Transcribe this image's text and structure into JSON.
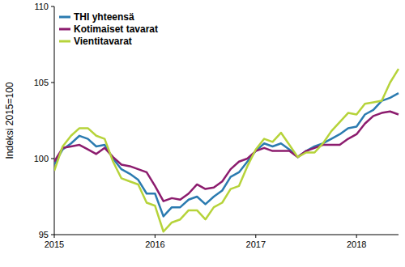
{
  "chart_data": {
    "type": "line",
    "y_label": "Indeksi 2015=100",
    "categories": [
      "2015",
      null,
      null,
      null,
      null,
      null,
      null,
      null,
      null,
      null,
      null,
      null,
      "2016",
      null,
      null,
      null,
      null,
      null,
      null,
      null,
      null,
      null,
      null,
      null,
      "2017",
      null,
      null,
      null,
      null,
      null,
      null,
      null,
      null,
      null,
      null,
      null,
      "2018",
      null,
      null,
      null,
      null,
      null
    ],
    "series": [
      {
        "name": "THI yhteensä",
        "color": "#2b7bb0",
        "values": [
          99.6,
          100.6,
          101.0,
          101.5,
          101.3,
          100.8,
          100.9,
          100.0,
          99.3,
          99.0,
          98.6,
          97.7,
          97.7,
          96.2,
          96.8,
          96.8,
          97.3,
          97.5,
          97.0,
          97.5,
          97.9,
          98.8,
          99.1,
          99.8,
          100.5,
          101.0,
          100.8,
          101.0,
          100.6,
          100.1,
          100.5,
          100.8,
          101.0,
          101.3,
          101.6,
          102.0,
          102.1,
          102.9,
          103.2,
          103.8,
          104.0,
          104.3
        ]
      },
      {
        "name": "Kotimaiset tavarat",
        "color": "#8c1c6e",
        "values": [
          99.8,
          100.7,
          100.8,
          100.9,
          100.6,
          100.3,
          100.7,
          100.1,
          99.6,
          99.5,
          99.3,
          99.1,
          98.2,
          97.2,
          97.4,
          97.3,
          97.7,
          98.3,
          98.0,
          98.1,
          98.5,
          99.3,
          99.8,
          100.0,
          100.5,
          100.7,
          100.5,
          100.5,
          100.5,
          100.1,
          100.5,
          100.7,
          100.9,
          100.9,
          100.9,
          101.3,
          101.6,
          102.3,
          102.8,
          103.0,
          103.1,
          102.9
        ]
      },
      {
        "name": "Vientitavarat",
        "color": "#b6d33a",
        "values": [
          99.2,
          100.8,
          101.5,
          102.0,
          102.0,
          101.5,
          101.3,
          99.8,
          98.7,
          98.5,
          98.3,
          97.1,
          96.9,
          95.2,
          95.8,
          96.0,
          96.6,
          96.6,
          96.0,
          96.8,
          97.1,
          98.0,
          98.2,
          99.5,
          100.6,
          101.3,
          101.1,
          101.7,
          100.9,
          100.1,
          100.4,
          100.4,
          101.0,
          101.8,
          102.4,
          103.0,
          102.9,
          103.6,
          103.7,
          103.8,
          105.0,
          105.9
        ]
      }
    ],
    "ylim": [
      95,
      110
    ],
    "yticks": [
      95,
      100,
      105,
      110
    ],
    "grid": false,
    "legend": "top-left"
  }
}
